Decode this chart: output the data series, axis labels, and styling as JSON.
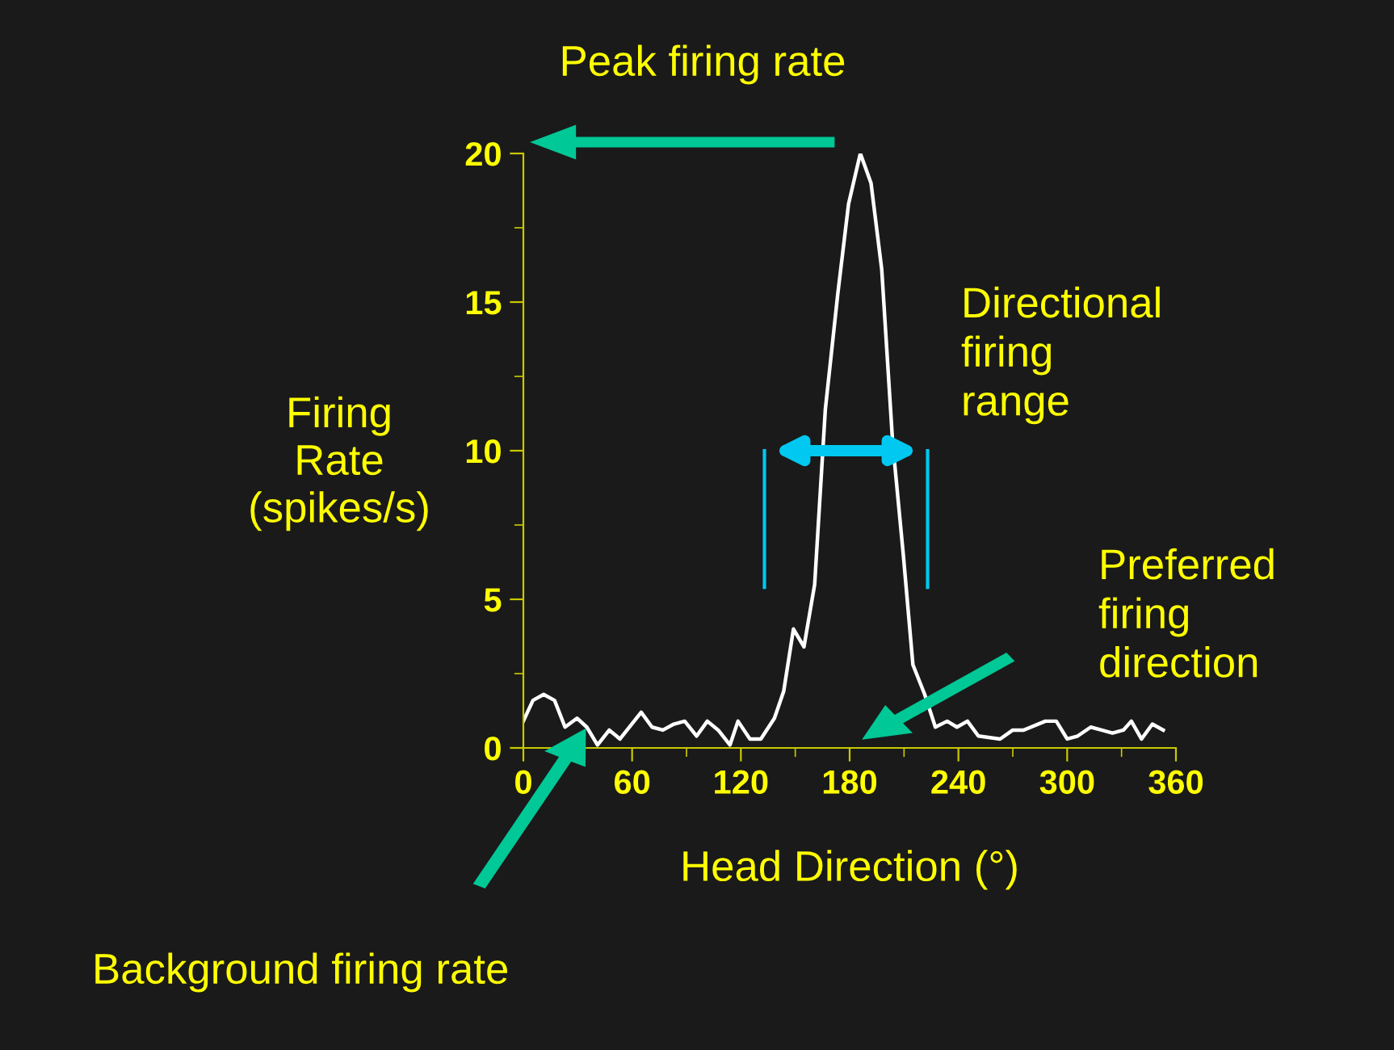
{
  "chart_data": {
    "type": "line",
    "xlabel": "Head Direction (°)",
    "ylabel": "Firing\nRate\n(spikes/s)",
    "annotations": [
      "Peak firing rate",
      "Directional\nfiring\nrange",
      "Preferred\nfiring\ndirection",
      "Background firing rate"
    ],
    "series": [
      {
        "color": "#ffffff",
        "x": [
          0,
          5.3,
          11.2,
          17.2,
          23,
          29.6,
          35,
          40.9,
          47.4,
          53.3,
          65,
          71,
          77,
          83,
          89,
          95.6,
          101.5,
          107.5,
          114,
          118.4,
          125,
          131,
          138.5,
          143.6,
          149,
          154.8,
          160.7,
          166.6,
          173.5,
          179.4,
          185.9,
          191.8,
          197.7,
          203.7,
          209.6,
          214.9,
          221.4,
          227.3,
          233.8,
          239.2,
          245,
          251,
          263,
          270,
          276,
          288,
          294,
          300,
          305.8,
          313,
          319,
          325,
          331,
          335.4,
          341,
          347,
          353
        ],
        "values": [
          0.9,
          1.6,
          1.8,
          1.6,
          0.7,
          1.0,
          0.7,
          0.1,
          0.6,
          0.3,
          1.2,
          0.7,
          0.6,
          0.8,
          0.9,
          0.4,
          0.9,
          0.6,
          0.1,
          0.9,
          0.3,
          0.3,
          1.0,
          1.9,
          4.0,
          3.4,
          5.5,
          11.4,
          15.3,
          18.3,
          20.0,
          19.0,
          16.1,
          10.3,
          6.5,
          2.8,
          1.8,
          0.7,
          0.9,
          0.7,
          0.9,
          0.4,
          0.3,
          0.6,
          0.6,
          0.9,
          0.9,
          0.3,
          0.4,
          0.7,
          0.6,
          0.5,
          0.6,
          0.9,
          0.3,
          0.8,
          0.6
        ]
      }
    ],
    "xlim": [
      0,
      360
    ],
    "xticks": [
      0,
      60,
      120,
      180,
      240,
      300,
      360
    ],
    "ylim": [
      0,
      20
    ],
    "yticks": [
      0,
      5,
      10,
      15,
      20
    ],
    "grid": false,
    "legend": false,
    "marker": "none",
    "line_style": "solid"
  }
}
